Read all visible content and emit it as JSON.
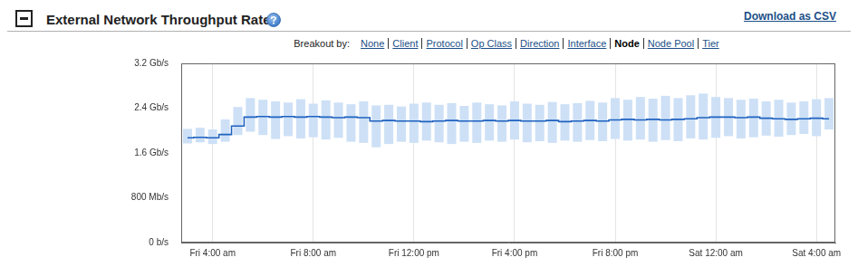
{
  "panel": {
    "download": "Download as CSV",
    "breakout": {
      "label": "Breakout by:",
      "options": [
        "None",
        "Client",
        "Protocol",
        "Op Class",
        "Direction",
        "Interface",
        "Node",
        "Node Pool",
        "Tier"
      ],
      "selected": "Node"
    }
  },
  "chart_data": {
    "type": "line",
    "title": "External Network Throughput Rate",
    "categories": [
      null,
      null,
      "Fri 4:00 am",
      null,
      null,
      null,
      null,
      null,
      null,
      null,
      "Fri 8:00 am",
      null,
      null,
      null,
      null,
      null,
      null,
      null,
      "Fri 12:00 pm",
      null,
      null,
      null,
      null,
      null,
      null,
      null,
      "Fri 4:00 pm",
      null,
      null,
      null,
      null,
      null,
      null,
      null,
      "Fri 8:00 pm",
      null,
      null,
      null,
      null,
      null,
      null,
      null,
      "Sat 12:00 am",
      null,
      null,
      null,
      null,
      null,
      null,
      null,
      "Sat 4:00 am",
      null
    ],
    "series": [
      {
        "type": "range",
        "color": "#cde0f6",
        "low": [
          1.77,
          1.79,
          1.76,
          1.8,
          1.92,
          1.98,
          1.92,
          1.85,
          1.9,
          1.86,
          1.88,
          1.84,
          1.87,
          1.8,
          1.78,
          1.7,
          1.76,
          1.8,
          1.78,
          1.82,
          1.79,
          1.76,
          1.8,
          1.78,
          1.82,
          1.8,
          1.84,
          1.79,
          1.81,
          1.78,
          1.82,
          1.8,
          1.83,
          1.81,
          1.85,
          1.82,
          1.84,
          1.8,
          1.83,
          1.81,
          1.86,
          1.84,
          1.87,
          1.9,
          1.86,
          1.88,
          1.91,
          1.89,
          1.92,
          1.94,
          1.9,
          2.02
        ],
        "high": [
          2.03,
          2.05,
          2.02,
          2.2,
          2.42,
          2.58,
          2.55,
          2.52,
          2.5,
          2.56,
          2.48,
          2.54,
          2.5,
          2.47,
          2.52,
          2.45,
          2.46,
          2.43,
          2.48,
          2.5,
          2.46,
          2.49,
          2.44,
          2.5,
          2.47,
          2.45,
          2.52,
          2.48,
          2.46,
          2.51,
          2.47,
          2.49,
          2.53,
          2.5,
          2.58,
          2.55,
          2.6,
          2.57,
          2.62,
          2.58,
          2.63,
          2.66,
          2.6,
          2.58,
          2.55,
          2.57,
          2.52,
          2.55,
          2.5,
          2.52,
          2.56,
          2.58
        ]
      },
      {
        "type": "line",
        "color": "#1f62c0",
        "line_style": "solid",
        "values": [
          1.87,
          1.88,
          1.87,
          1.93,
          2.08,
          2.24,
          2.25,
          2.24,
          2.25,
          2.24,
          2.25,
          2.24,
          2.23,
          2.24,
          2.23,
          2.17,
          2.18,
          2.17,
          2.17,
          2.16,
          2.17,
          2.18,
          2.17,
          2.17,
          2.18,
          2.17,
          2.18,
          2.17,
          2.17,
          2.18,
          2.16,
          2.17,
          2.18,
          2.17,
          2.19,
          2.2,
          2.19,
          2.2,
          2.19,
          2.2,
          2.21,
          2.23,
          2.24,
          2.24,
          2.23,
          2.24,
          2.22,
          2.21,
          2.2,
          2.21,
          2.22,
          2.21
        ]
      }
    ],
    "ylim": [
      0,
      3.2
    ],
    "yticks": [
      {
        "value": 0,
        "label": "0 b/s"
      },
      {
        "value": 0.8,
        "label": "800 Mb/s"
      },
      {
        "value": 1.6,
        "label": "1.6 Gb/s"
      },
      {
        "value": 2.4,
        "label": "2.4 Gb/s"
      },
      {
        "value": 3.2,
        "label": "3.2 Gb/s"
      }
    ],
    "grid": true
  }
}
